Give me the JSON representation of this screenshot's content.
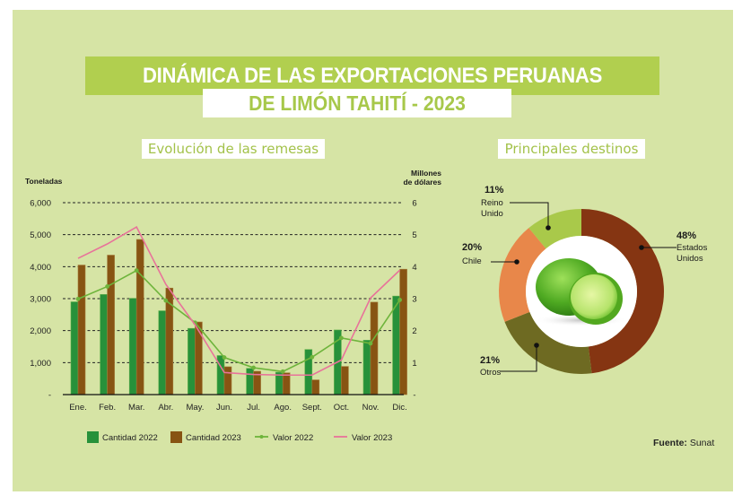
{
  "header": {
    "title_line1": "DINÁMICA DE LAS EXPORTACIONES PERUANAS",
    "title_line2": "DE LIMÓN TAHITÍ - 2023"
  },
  "colors": {
    "background": "#d6e4a5",
    "title_bar": "#b1cf4f",
    "title_accent": "#a7c84a",
    "cantidad_2022": "#27913a",
    "cantidad_2023": "#875413",
    "valor_2022": "#6eb43b",
    "valor_2023": "#e8739a",
    "estados_unidos": "#853512",
    "otros": "#6e6a22",
    "chile": "#e8874a",
    "reino_unido": "#a9c94a"
  },
  "chart_data": [
    {
      "type": "bar",
      "title": "Evolución de las remesas",
      "ylabel": "Toneladas",
      "y2label_line1": "Millones",
      "y2label_line2": "de dólares",
      "categories": [
        "Ene.",
        "Feb.",
        "Mar.",
        "Abr.",
        "May.",
        "Jun.",
        "Jul.",
        "Ago.",
        "Sept.",
        "Oct.",
        "Nov.",
        "Dic."
      ],
      "ylim": [
        0,
        6000
      ],
      "y_ticks": [
        "-",
        "1,000",
        "2,000",
        "3,000",
        "4,000",
        "5,000",
        "6,000"
      ],
      "y2lim": [
        0,
        6
      ],
      "y2_ticks": [
        "-",
        "1",
        "2",
        "3",
        "4",
        "5",
        "6"
      ],
      "grid": true,
      "legend": "bottom",
      "series": [
        {
          "name": "Cantidad 2022",
          "type": "bar",
          "axis": "left",
          "values": [
            2900,
            3130,
            3010,
            2620,
            2070,
            1220,
            820,
            700,
            1410,
            2020,
            1700,
            3080
          ]
        },
        {
          "name": "Cantidad 2023",
          "type": "bar",
          "axis": "left",
          "values": [
            4050,
            4360,
            4850,
            3330,
            2270,
            870,
            730,
            680,
            460,
            880,
            2890,
            3920
          ]
        },
        {
          "name": "Valor 2022",
          "type": "line",
          "axis": "right",
          "markers": true,
          "values": [
            2.99,
            3.38,
            3.88,
            2.94,
            2.25,
            1.16,
            0.84,
            0.72,
            1.17,
            1.77,
            1.6,
            2.96
          ]
        },
        {
          "name": "Valor 2023",
          "type": "line",
          "axis": "right",
          "markers": false,
          "values": [
            4.26,
            4.71,
            5.24,
            3.45,
            2.18,
            0.69,
            0.63,
            0.61,
            0.61,
            1.08,
            3.02,
            3.89
          ]
        }
      ]
    },
    {
      "type": "pie",
      "variant": "donut",
      "title": "Principales destinos",
      "slices": [
        {
          "label_line1": "Estados",
          "label_line2": "Unidos",
          "pct_label": "48%",
          "value": 48
        },
        {
          "label_line1": "Otros",
          "label_line2": "",
          "pct_label": "21%",
          "value": 21
        },
        {
          "label_line1": "Chile",
          "label_line2": "",
          "pct_label": "20%",
          "value": 20
        },
        {
          "label_line1": "Reino",
          "label_line2": "Unido",
          "pct_label": "11%",
          "value": 11
        }
      ],
      "center_image": "limes-image"
    }
  ],
  "footer": {
    "source_label": "Fuente:",
    "source_value": "Sunat"
  }
}
